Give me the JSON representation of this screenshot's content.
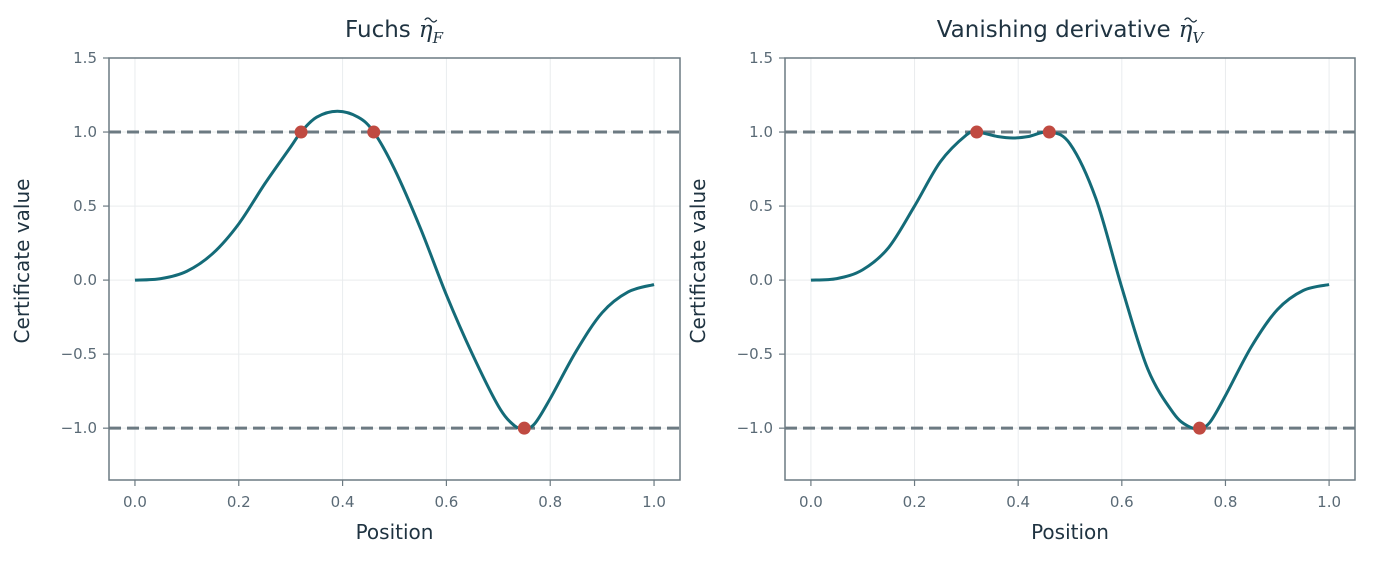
{
  "chart_data": [
    {
      "type": "line",
      "title": "Fuchs",
      "title_math": "η",
      "title_sub": "F",
      "xlabel": "Position",
      "ylabel": "Certificate value",
      "xlim": [
        -0.05,
        1.05
      ],
      "ylim": [
        -1.35,
        1.5
      ],
      "xticks": [
        "0.0",
        "0.2",
        "0.4",
        "0.6",
        "0.8",
        "1.0"
      ],
      "yticks": [
        "−1.0",
        "−0.5",
        "0.0",
        "0.5",
        "1.0",
        "1.5"
      ],
      "grid": true,
      "reference_lines": [
        1.0,
        -1.0
      ],
      "series": [
        {
          "x": [
            0.0,
            0.05,
            0.1,
            0.15,
            0.2,
            0.25,
            0.3,
            0.32,
            0.35,
            0.39,
            0.43,
            0.46,
            0.5,
            0.55,
            0.6,
            0.65,
            0.7,
            0.73,
            0.75,
            0.77,
            0.8,
            0.85,
            0.9,
            0.95,
            1.0
          ],
          "y": [
            0.0,
            0.01,
            0.06,
            0.18,
            0.38,
            0.65,
            0.9,
            1.0,
            1.1,
            1.14,
            1.1,
            1.0,
            0.75,
            0.35,
            -0.1,
            -0.5,
            -0.85,
            -0.98,
            -1.0,
            -0.97,
            -0.8,
            -0.48,
            -0.22,
            -0.08,
            -0.03
          ]
        }
      ],
      "markers": {
        "x": [
          0.32,
          0.46,
          0.75
        ],
        "y": [
          1.0,
          1.0,
          -1.0
        ]
      },
      "colors": {
        "line": "#146b78",
        "marker": "#c04a41",
        "reference": "#6c7a82"
      }
    },
    {
      "type": "line",
      "title": "Vanishing derivative",
      "title_math": "η",
      "title_sub": "V",
      "xlabel": "Position",
      "ylabel": "Certificate value",
      "xlim": [
        -0.05,
        1.05
      ],
      "ylim": [
        -1.35,
        1.5
      ],
      "xticks": [
        "0.0",
        "0.2",
        "0.4",
        "0.6",
        "0.8",
        "1.0"
      ],
      "yticks": [
        "−1.0",
        "−0.5",
        "0.0",
        "0.5",
        "1.0",
        "1.5"
      ],
      "grid": true,
      "reference_lines": [
        1.0,
        -1.0
      ],
      "series": [
        {
          "x": [
            0.0,
            0.05,
            0.1,
            0.15,
            0.2,
            0.25,
            0.3,
            0.32,
            0.36,
            0.39,
            0.42,
            0.46,
            0.5,
            0.55,
            0.6,
            0.65,
            0.7,
            0.73,
            0.75,
            0.77,
            0.8,
            0.85,
            0.9,
            0.95,
            1.0
          ],
          "y": [
            0.0,
            0.01,
            0.07,
            0.22,
            0.5,
            0.8,
            0.98,
            1.0,
            0.97,
            0.96,
            0.97,
            1.0,
            0.92,
            0.55,
            -0.05,
            -0.6,
            -0.9,
            -0.99,
            -1.0,
            -0.96,
            -0.78,
            -0.45,
            -0.2,
            -0.07,
            -0.03
          ]
        }
      ],
      "markers": {
        "x": [
          0.32,
          0.46,
          0.75
        ],
        "y": [
          1.0,
          1.0,
          -1.0
        ]
      },
      "colors": {
        "line": "#146b78",
        "marker": "#c04a41",
        "reference": "#6c7a82"
      }
    }
  ]
}
